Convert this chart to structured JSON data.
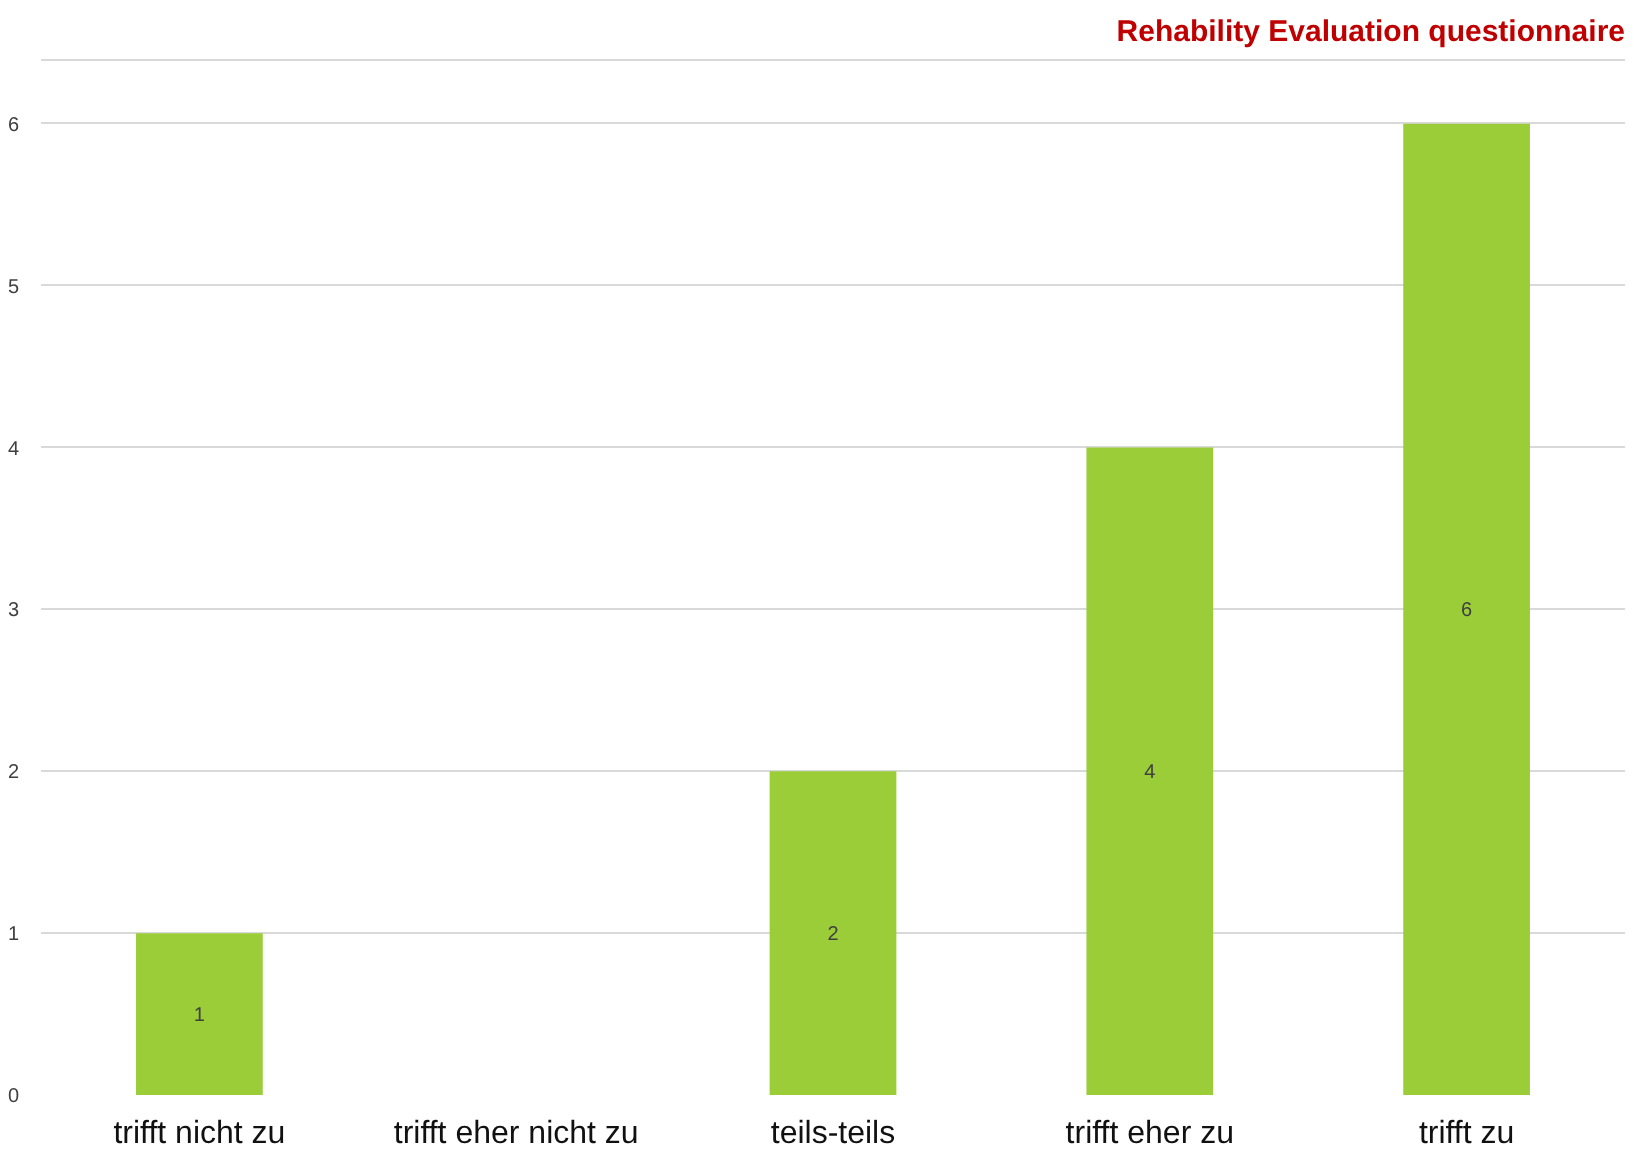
{
  "chart_data": {
    "type": "bar",
    "title": "Rehability Evaluation questionnaire",
    "categories": [
      "trifft nicht zu",
      "trifft eher nicht zu",
      "teils-teils",
      "trifft eher zu",
      "trifft zu"
    ],
    "values": [
      1,
      0,
      2,
      4,
      6
    ],
    "value_labels": [
      "1",
      null,
      "2",
      "4",
      "6"
    ],
    "color": "#9acd38",
    "ylim": [
      0,
      6.4
    ],
    "yticks": [
      0,
      1,
      2,
      3,
      4,
      5,
      6
    ],
    "grid": "y"
  }
}
